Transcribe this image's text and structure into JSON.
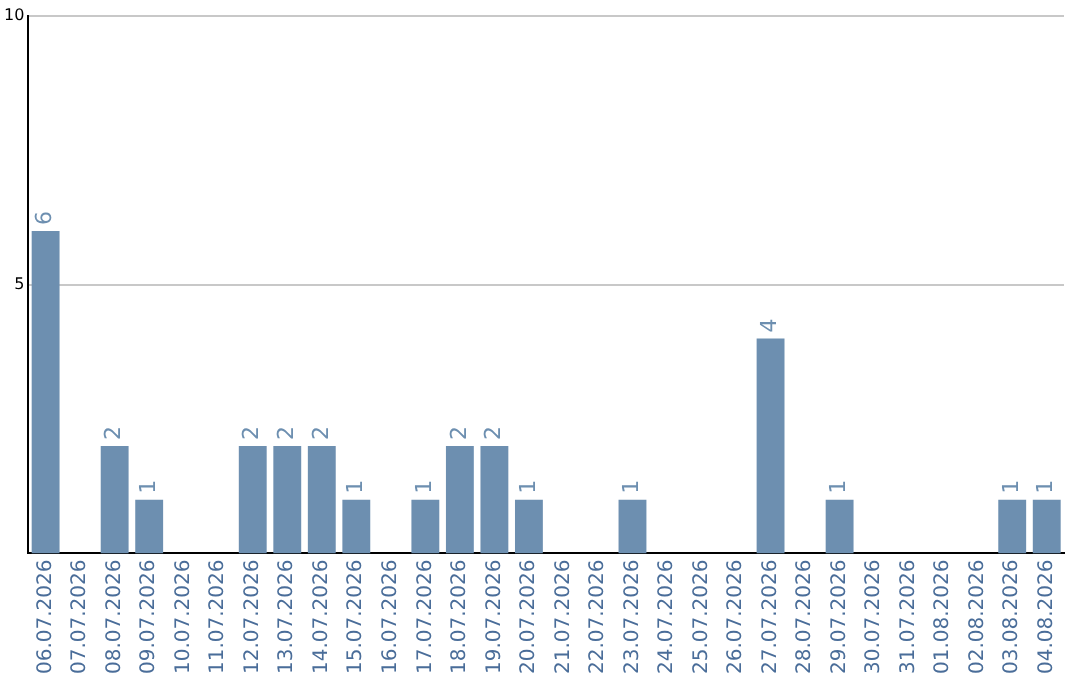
{
  "chart_data": {
    "type": "bar",
    "categories": [
      "06.07.2026",
      "07.07.2026",
      "08.07.2026",
      "09.07.2026",
      "10.07.2026",
      "11.07.2026",
      "12.07.2026",
      "13.07.2026",
      "14.07.2026",
      "15.07.2026",
      "16.07.2026",
      "17.07.2026",
      "18.07.2026",
      "19.07.2026",
      "20.07.2026",
      "21.07.2026",
      "22.07.2026",
      "23.07.2026",
      "24.07.2026",
      "25.07.2026",
      "26.07.2026",
      "27.07.2026",
      "28.07.2026",
      "29.07.2026",
      "30.07.2026",
      "31.07.2026",
      "01.08.2026",
      "02.08.2026",
      "03.08.2026",
      "04.08.2026"
    ],
    "values": [
      6,
      0,
      2,
      1,
      0,
      0,
      2,
      2,
      2,
      1,
      0,
      1,
      2,
      2,
      1,
      0,
      0,
      1,
      0,
      0,
      0,
      4,
      0,
      1,
      0,
      0,
      0,
      0,
      1,
      1
    ],
    "value_labels": [
      "6",
      null,
      "2",
      "1",
      null,
      null,
      "2",
      "2",
      "2",
      "1",
      null,
      "1",
      "2",
      "2",
      "1",
      null,
      null,
      "1",
      null,
      null,
      null,
      "4",
      null,
      "1",
      null,
      null,
      null,
      null,
      "1",
      "1"
    ],
    "color": "#6d8fb0",
    "ylim": [
      0,
      10
    ],
    "yticks": [
      5,
      10
    ],
    "grid": "y"
  }
}
